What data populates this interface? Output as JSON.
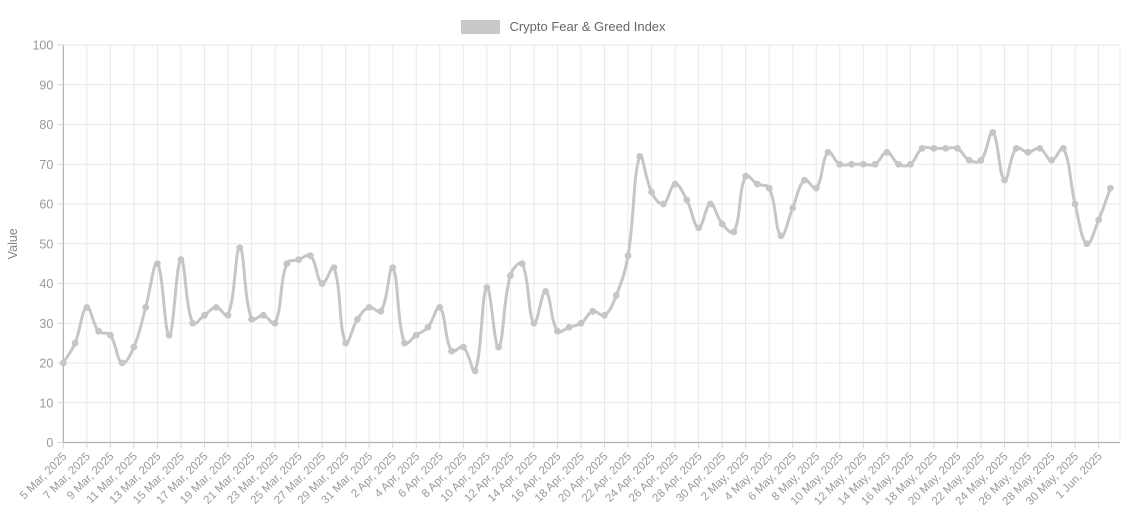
{
  "legend": {
    "label": "Crypto Fear & Greed Index",
    "swatch_color": "#c9c9c9"
  },
  "colors": {
    "background": "#ffffff",
    "line": "#c6c6c6",
    "point": "#c6c6c6",
    "grid": "#e9e9e9",
    "axis": "#b0b0b0",
    "tick": "#d6d6d6",
    "tick_text": "#999999",
    "axis_title_text": "#888888",
    "legend_text": "#666666"
  },
  "chart_data": {
    "type": "line",
    "series_name": "Crypto Fear & Greed Index",
    "title": "",
    "xlabel": "",
    "ylabel": "Value",
    "ylim": [
      0,
      100
    ],
    "y_tick_step": 10,
    "x_tick_every": 2,
    "grid": true,
    "legend_position": "top",
    "smoothing": 0.4,
    "x": [
      "5 Mar, 2025",
      "6 Mar, 2025",
      "7 Mar, 2025",
      "8 Mar, 2025",
      "9 Mar, 2025",
      "10 Mar, 2025",
      "11 Mar, 2025",
      "12 Mar, 2025",
      "13 Mar, 2025",
      "14 Mar, 2025",
      "15 Mar, 2025",
      "16 Mar, 2025",
      "17 Mar, 2025",
      "18 Mar, 2025",
      "19 Mar, 2025",
      "20 Mar, 2025",
      "21 Mar, 2025",
      "22 Mar, 2025",
      "23 Mar, 2025",
      "24 Mar, 2025",
      "25 Mar, 2025",
      "26 Mar, 2025",
      "27 Mar, 2025",
      "28 Mar, 2025",
      "29 Mar, 2025",
      "30 Mar, 2025",
      "31 Mar, 2025",
      "1 Apr, 2025",
      "2 Apr, 2025",
      "3 Apr, 2025",
      "4 Apr, 2025",
      "5 Apr, 2025",
      "6 Apr, 2025",
      "7 Apr, 2025",
      "8 Apr, 2025",
      "9 Apr, 2025",
      "10 Apr, 2025",
      "11 Apr, 2025",
      "12 Apr, 2025",
      "13 Apr, 2025",
      "14 Apr, 2025",
      "15 Apr, 2025",
      "16 Apr, 2025",
      "17 Apr, 2025",
      "18 Apr, 2025",
      "19 Apr, 2025",
      "20 Apr, 2025",
      "21 Apr, 2025",
      "22 Apr, 2025",
      "23 Apr, 2025",
      "24 Apr, 2025",
      "25 Apr, 2025",
      "26 Apr, 2025",
      "27 Apr, 2025",
      "28 Apr, 2025",
      "29 Apr, 2025",
      "30 Apr, 2025",
      "1 May, 2025",
      "2 May, 2025",
      "3 May, 2025",
      "4 May, 2025",
      "5 May, 2025",
      "6 May, 2025",
      "7 May, 2025",
      "8 May, 2025",
      "9 May, 2025",
      "10 May, 2025",
      "11 May, 2025",
      "12 May, 2025",
      "13 May, 2025",
      "14 May, 2025",
      "15 May, 2025",
      "16 May, 2025",
      "17 May, 2025",
      "18 May, 2025",
      "19 May, 2025",
      "20 May, 2025",
      "21 May, 2025",
      "22 May, 2025",
      "23 May, 2025",
      "24 May, 2025",
      "25 May, 2025",
      "26 May, 2025",
      "27 May, 2025",
      "28 May, 2025",
      "29 May, 2025",
      "30 May, 2025",
      "31 May, 2025",
      "1 Jun, 2025",
      "2 Jun, 2025"
    ],
    "values": [
      20,
      25,
      34,
      28,
      27,
      20,
      24,
      34,
      45,
      27,
      46,
      30,
      32,
      34,
      32,
      49,
      31,
      32,
      30,
      45,
      46,
      47,
      40,
      44,
      25,
      31,
      34,
      33,
      44,
      25,
      27,
      29,
      34,
      23,
      24,
      18,
      39,
      24,
      42,
      45,
      30,
      38,
      28,
      29,
      30,
      33,
      32,
      37,
      47,
      72,
      63,
      60,
      65,
      61,
      54,
      60,
      55,
      53,
      67,
      65,
      64,
      52,
      59,
      66,
      64,
      73,
      70,
      70,
      70,
      70,
      73,
      70,
      70,
      74,
      74,
      74,
      74,
      71,
      71,
      78,
      66,
      74,
      73,
      74,
      71,
      74,
      60,
      50,
      56,
      64
    ],
    "y_tick_labels": [
      "0",
      "10",
      "20",
      "30",
      "40",
      "50",
      "60",
      "70",
      "80",
      "90",
      "100"
    ]
  }
}
